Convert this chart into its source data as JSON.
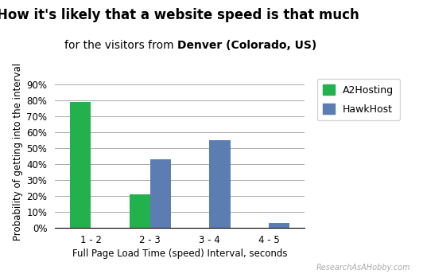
{
  "title_line1": "How it's likely that a website speed is that much",
  "title_line2_prefix": "for the visitors from ",
  "title_line2_bold": "Denver (Colorado, US)",
  "xlabel": "Full Page Load Time (speed) Interval, seconds",
  "ylabel": "Probability of getting into the interval",
  "categories": [
    "1 - 2",
    "2 - 3",
    "3 - 4",
    "4 - 5"
  ],
  "a2hosting_values": [
    79,
    21,
    0,
    0
  ],
  "hawkhost_values": [
    0,
    43,
    55,
    3
  ],
  "a2hosting_color": "#22b14c",
  "hawkhost_color": "#5b7db1",
  "yticks": [
    0,
    10,
    20,
    30,
    40,
    50,
    60,
    70,
    80,
    90
  ],
  "ylim": [
    0,
    95
  ],
  "bar_width": 0.35,
  "legend_labels": [
    "A2Hosting",
    "HawkHost"
  ],
  "watermark": "ResearchAsAHobby.com",
  "background_color": "#ffffff",
  "grid_color": "#aaaaaa",
  "title_fontsize": 12,
  "subtitle_fontsize": 10,
  "axis_label_fontsize": 8.5,
  "tick_fontsize": 8.5,
  "legend_fontsize": 9
}
